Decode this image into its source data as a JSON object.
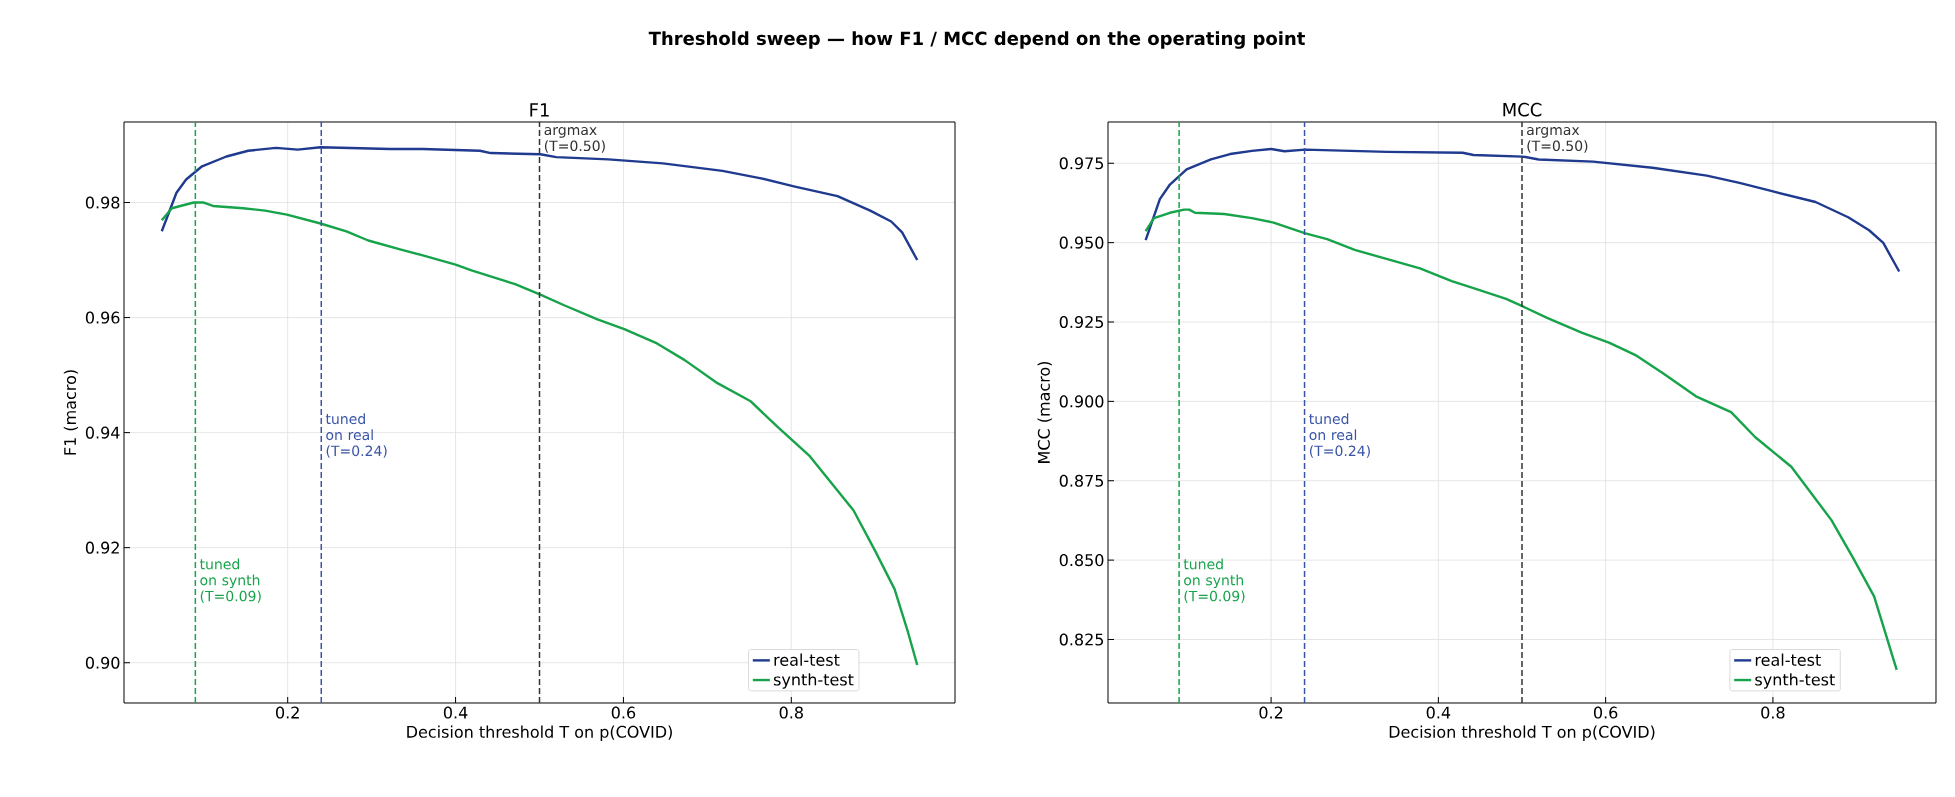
{
  "chart_data": [
    {
      "type": "line",
      "title": "F1",
      "xlabel": "Decision threshold T on p(COVID)",
      "ylabel": "F1 (macro)",
      "annotations": [
        "Threshold sweep — how F1 / MCC depend on the operating point"
      ],
      "xlim": [
        0.005,
        0.995
      ],
      "xticks": [
        0.2,
        0.4,
        0.6,
        0.8
      ],
      "ylim": [
        0.893,
        0.994
      ],
      "yticks": [
        {
          "value": 0.9,
          "label": "0.90"
        },
        {
          "value": 0.92,
          "label": "0.92"
        },
        {
          "value": 0.94,
          "label": "0.94"
        },
        {
          "value": 0.96,
          "label": "0.96"
        },
        {
          "value": 0.98,
          "label": "0.98"
        }
      ],
      "grid": true,
      "legend": "bottom right",
      "marker": "none",
      "line_style": "solid",
      "series": [
        {
          "name": "real-test",
          "color": "#1f3a8f",
          "x": [
            0.05,
            0.0675,
            0.079,
            0.098,
            0.127,
            0.153,
            0.186,
            0.212,
            0.239,
            0.322,
            0.361,
            0.429,
            0.442,
            0.501,
            0.52,
            0.582,
            0.647,
            0.718,
            0.764,
            0.803,
            0.855,
            0.894,
            0.919,
            0.932,
            0.95
          ],
          "values": [
            0.975,
            0.9817,
            0.984,
            0.9863,
            0.988,
            0.989,
            0.9895,
            0.9892,
            0.9896,
            0.9893,
            0.9893,
            0.989,
            0.9886,
            0.9884,
            0.9879,
            0.9875,
            0.9868,
            0.9855,
            0.9842,
            0.9828,
            0.9811,
            0.9786,
            0.9767,
            0.9748,
            0.97
          ]
        },
        {
          "name": "synth-test",
          "color": "#17a34a",
          "x": [
            0.05,
            0.062,
            0.088,
            0.1,
            0.111,
            0.147,
            0.173,
            0.199,
            0.238,
            0.27,
            0.296,
            0.335,
            0.361,
            0.4,
            0.419,
            0.471,
            0.501,
            0.53,
            0.569,
            0.601,
            0.64,
            0.673,
            0.712,
            0.751,
            0.783,
            0.822,
            0.874,
            0.9,
            0.923,
            0.939,
            0.95
          ],
          "values": [
            0.9769,
            0.979,
            0.98,
            0.98,
            0.9794,
            0.979,
            0.9786,
            0.9779,
            0.9764,
            0.975,
            0.9734,
            0.9718,
            0.9708,
            0.9692,
            0.9682,
            0.9658,
            0.964,
            0.9621,
            0.9597,
            0.958,
            0.9555,
            0.9526,
            0.9486,
            0.9455,
            0.9411,
            0.9359,
            0.9265,
            0.9194,
            0.9128,
            0.9053,
            0.8996
          ]
        }
      ],
      "ref_lines": [
        {
          "axis": "x",
          "value": 0.09,
          "label": "tuned on synth (T=0.09)",
          "color": "#17a34a",
          "line_style": "dashed"
        },
        {
          "axis": "x",
          "value": 0.24,
          "label": "tuned on real (T=0.24)",
          "color": "#3a54a8",
          "line_style": "dashed"
        },
        {
          "axis": "x",
          "value": 0.5,
          "label": "argmax (T=0.50)",
          "color": "#333333",
          "line_style": "dashed"
        }
      ]
    },
    {
      "type": "line",
      "title": "MCC",
      "xlabel": "Decision threshold T on p(COVID)",
      "ylabel": "MCC (macro)",
      "xlim": [
        0.005,
        0.995
      ],
      "xticks": [
        0.2,
        0.4,
        0.6,
        0.8
      ],
      "ylim": [
        0.805,
        0.988
      ],
      "yticks": [
        0.825,
        {
          "value": 0.85,
          "label": "0.850"
        },
        0.875,
        {
          "value": 0.9,
          "label": "0.900"
        },
        0.925,
        {
          "value": 0.95,
          "label": "0.950"
        },
        0.975
      ],
      "grid": true,
      "legend": "bottom right",
      "marker": "none",
      "line_style": "solid",
      "series": [
        {
          "name": "real-test",
          "color": "#1f3a8f",
          "x": [
            0.05,
            0.067,
            0.079,
            0.099,
            0.128,
            0.151,
            0.177,
            0.2,
            0.216,
            0.241,
            0.339,
            0.429,
            0.442,
            0.501,
            0.52,
            0.585,
            0.656,
            0.721,
            0.76,
            0.799,
            0.851,
            0.89,
            0.915,
            0.932,
            0.951
          ],
          "values": [
            0.9508,
            0.9637,
            0.9683,
            0.9731,
            0.9762,
            0.9779,
            0.9789,
            0.9795,
            0.9788,
            0.9793,
            0.9786,
            0.9783,
            0.9776,
            0.9771,
            0.9762,
            0.9755,
            0.9736,
            0.9711,
            0.9688,
            0.9662,
            0.9628,
            0.958,
            0.9539,
            0.9499,
            0.9409
          ]
        },
        {
          "name": "synth-test",
          "color": "#17a34a",
          "x": [
            0.05,
            0.06,
            0.079,
            0.096,
            0.102,
            0.109,
            0.144,
            0.177,
            0.203,
            0.241,
            0.267,
            0.3,
            0.339,
            0.378,
            0.416,
            0.442,
            0.481,
            0.501,
            0.53,
            0.572,
            0.604,
            0.637,
            0.669,
            0.708,
            0.75,
            0.779,
            0.822,
            0.87,
            0.896,
            0.921,
            0.935,
            0.948
          ],
          "values": [
            0.9536,
            0.9577,
            0.9594,
            0.9604,
            0.9604,
            0.9594,
            0.959,
            0.9577,
            0.9563,
            0.9529,
            0.9511,
            0.9477,
            0.9448,
            0.9419,
            0.9379,
            0.9357,
            0.9323,
            0.9299,
            0.9263,
            0.9216,
            0.9185,
            0.9144,
            0.9088,
            0.9016,
            0.8966,
            0.8887,
            0.8794,
            0.8626,
            0.8506,
            0.8386,
            0.8266,
            0.8154
          ]
        }
      ],
      "ref_lines": [
        {
          "axis": "x",
          "value": 0.09,
          "label": "tuned on synth (T=0.09)",
          "color": "#17a34a",
          "line_style": "dashed"
        },
        {
          "axis": "x",
          "value": 0.24,
          "label": "tuned on real (T=0.24)",
          "color": "#3a54a8",
          "line_style": "dashed"
        },
        {
          "axis": "x",
          "value": 0.5,
          "label": "argmax (T=0.50)",
          "color": "#333333",
          "line_style": "dashed"
        }
      ]
    }
  ]
}
